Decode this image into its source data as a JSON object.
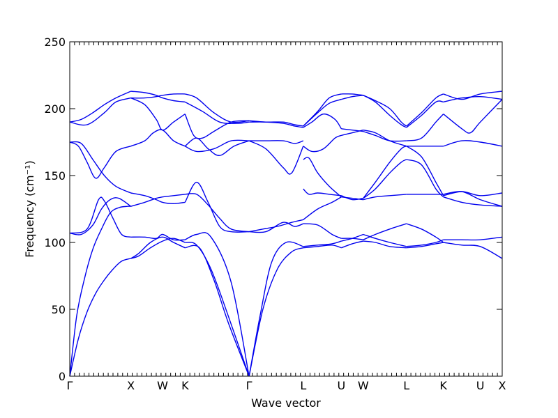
{
  "chart_data": {
    "type": "line",
    "title": "",
    "xlabel": "Wave vector",
    "ylabel": "Frequency (cm⁻¹)",
    "ylim": [
      0,
      250
    ],
    "yticks": [
      0,
      50,
      100,
      150,
      200,
      250
    ],
    "xlim": [
      0,
      7.5
    ],
    "grid": false,
    "line_color": "#0000ee",
    "high_symmetry_points": [
      {
        "label": "Γ",
        "x": 0.0
      },
      {
        "label": "X",
        "x": 1.06
      },
      {
        "label": "W",
        "x": 1.61
      },
      {
        "label": "K",
        "x": 2.0
      },
      {
        "label": "Γ",
        "x": 3.11
      },
      {
        "label": "L",
        "x": 4.05
      },
      {
        "label": "U",
        "x": 4.71
      },
      {
        "label": "W",
        "x": 5.09
      },
      {
        "label": "L",
        "x": 5.84
      },
      {
        "label": "K",
        "x": 6.48
      },
      {
        "label": "U",
        "x": 7.12
      },
      {
        "label": "X",
        "x": 7.5
      }
    ],
    "series": [
      {
        "x": [
          0,
          0.15,
          0.3,
          0.45,
          0.6,
          0.75,
          0.9,
          1.06
        ],
        "values": [
          0,
          28,
          48,
          62,
          72,
          80,
          86,
          88
        ]
      },
      {
        "x": [
          0,
          0.12,
          0.25,
          0.4,
          0.55,
          0.7,
          0.85,
          1.0,
          1.06
        ],
        "values": [
          0,
          45,
          72,
          95,
          110,
          122,
          126,
          127,
          127
        ]
      },
      {
        "x": [
          0,
          0.2,
          0.4,
          0.55,
          0.7,
          0.85,
          1.06
        ],
        "values": [
          107,
          106,
          113,
          125,
          132,
          133,
          127
        ]
      },
      {
        "x": [
          0,
          0.3,
          0.5,
          0.6,
          0.75,
          0.9,
          1.06
        ],
        "values": [
          107,
          110,
          132,
          131,
          118,
          106,
          104
        ]
      },
      {
        "x": [
          1.06,
          1.2,
          1.4,
          1.61,
          1.8,
          2.0
        ],
        "values": [
          88,
          90,
          96,
          101,
          103,
          100
        ]
      },
      {
        "x": [
          1.06,
          1.2,
          1.4,
          1.61,
          1.8,
          2.0
        ],
        "values": [
          88,
          92,
          100,
          104,
          100,
          96
        ]
      },
      {
        "x": [
          1.06,
          1.3,
          1.5,
          1.61,
          1.8,
          2.0
        ],
        "values": [
          104,
          104,
          103,
          106,
          102,
          102
        ]
      },
      {
        "x": [
          1.06,
          1.3,
          1.5,
          1.61,
          1.8,
          2.0
        ],
        "values": [
          127,
          130,
          133,
          134,
          135,
          136
        ]
      },
      {
        "x": [
          1.06,
          1.3,
          1.5,
          1.61,
          1.8,
          2.0
        ],
        "values": [
          137,
          135,
          132,
          130,
          129,
          130
        ]
      },
      {
        "x": [
          0,
          0.2,
          0.4,
          0.6,
          0.8,
          1.06
        ],
        "values": [
          175,
          174,
          162,
          150,
          142,
          137
        ]
      },
      {
        "x": [
          0,
          0.15,
          0.3,
          0.45,
          0.6,
          0.8,
          1.06
        ],
        "values": [
          175,
          172,
          160,
          148,
          156,
          168,
          172
        ]
      },
      {
        "x": [
          0,
          0.3,
          0.6,
          0.8,
          1.06
        ],
        "values": [
          190,
          188,
          197,
          205,
          208
        ]
      },
      {
        "x": [
          0,
          0.2,
          0.4,
          0.6,
          0.8,
          1.06
        ],
        "values": [
          190,
          192,
          197,
          203,
          208,
          213
        ]
      },
      {
        "x": [
          1.06,
          1.3,
          1.45,
          1.61,
          1.8,
          2.0
        ],
        "values": [
          172,
          176,
          182,
          184,
          176,
          172
        ]
      },
      {
        "x": [
          1.06,
          1.3,
          1.5,
          1.61,
          1.8,
          2.0
        ],
        "values": [
          208,
          203,
          192,
          184,
          190,
          196
        ]
      },
      {
        "x": [
          1.06,
          1.3,
          1.5,
          1.61,
          1.8,
          2.0
        ],
        "values": [
          213,
          212,
          210,
          208,
          206,
          205
        ]
      },
      {
        "x": [
          1.06,
          1.3,
          1.5,
          1.61,
          1.8,
          2.0
        ],
        "values": [
          208,
          208,
          209,
          210,
          211,
          211
        ]
      },
      {
        "x": [
          2.0,
          2.25,
          2.5,
          2.75,
          3.11
        ],
        "values": [
          96,
          96,
          72,
          40,
          0
        ]
      },
      {
        "x": [
          2.0,
          2.2,
          2.45,
          2.75,
          3.11
        ],
        "values": [
          100,
          98,
          80,
          45,
          0
        ]
      },
      {
        "x": [
          2.0,
          2.2,
          2.45,
          2.8,
          3.11
        ],
        "values": [
          102,
          106,
          104,
          70,
          0
        ]
      },
      {
        "x": [
          2.0,
          2.2,
          2.4,
          2.6,
          2.8,
          3.11
        ],
        "values": [
          130,
          145,
          130,
          112,
          108,
          108
        ]
      },
      {
        "x": [
          2.0,
          2.2,
          2.4,
          2.6,
          2.8,
          3.11
        ],
        "values": [
          136,
          136,
          128,
          118,
          110,
          108
        ]
      },
      {
        "x": [
          2.0,
          2.2,
          2.4,
          2.6,
          2.85,
          3.11
        ],
        "values": [
          172,
          178,
          170,
          165,
          172,
          176
        ]
      },
      {
        "x": [
          2.0,
          2.15,
          2.3,
          2.5,
          2.8,
          3.11
        ],
        "values": [
          196,
          180,
          178,
          183,
          190,
          191
        ]
      },
      {
        "x": [
          2.0,
          2.3,
          2.6,
          2.9,
          3.11
        ],
        "values": [
          205,
          198,
          190,
          189,
          190
        ]
      },
      {
        "x": [
          2.0,
          2.2,
          2.5,
          2.8,
          3.11
        ],
        "values": [
          211,
          208,
          197,
          190,
          191
        ]
      },
      {
        "x": [
          2.0,
          2.2,
          2.5,
          2.8,
          3.11
        ],
        "values": [
          172,
          168,
          170,
          176,
          176
        ]
      },
      {
        "x": [
          3.11,
          3.35,
          3.6,
          3.85,
          4.05
        ],
        "values": [
          0,
          50,
          80,
          93,
          96
        ]
      },
      {
        "x": [
          3.11,
          3.3,
          3.5,
          3.75,
          4.05
        ],
        "values": [
          0,
          45,
          85,
          100,
          97
        ]
      },
      {
        "x": [
          3.11,
          3.35,
          3.6,
          3.85,
          4.05
        ],
        "values": [
          108,
          110,
          112,
          115,
          117
        ]
      },
      {
        "x": [
          3.11,
          3.4,
          3.7,
          3.9,
          4.05
        ],
        "values": [
          108,
          108,
          115,
          112,
          114
        ]
      },
      {
        "x": [
          3.11,
          3.4,
          3.7,
          3.85,
          4.05
        ],
        "values": [
          176,
          170,
          156,
          152,
          172
        ]
      },
      {
        "x": [
          3.11,
          3.4,
          3.7,
          3.9,
          4.05
        ],
        "values": [
          176,
          176,
          176,
          174,
          176
        ]
      },
      {
        "x": [
          3.11,
          3.4,
          3.7,
          3.9,
          4.05
        ],
        "values": [
          190,
          190,
          189,
          187,
          186
        ]
      },
      {
        "x": [
          3.11,
          3.4,
          3.7,
          3.9,
          4.05
        ],
        "values": [
          191,
          190,
          190,
          188,
          187
        ]
      },
      {
        "x": [
          4.05,
          4.3,
          4.55,
          4.71
        ],
        "values": [
          96,
          97,
          98,
          96
        ]
      },
      {
        "x": [
          4.05,
          4.3,
          4.55,
          4.71
        ],
        "values": [
          97,
          98,
          99,
          101
        ]
      },
      {
        "x": [
          4.05,
          4.3,
          4.55,
          4.71
        ],
        "values": [
          114,
          113,
          106,
          103
        ]
      },
      {
        "x": [
          4.05,
          4.3,
          4.55,
          4.71
        ],
        "values": [
          117,
          125,
          130,
          134
        ]
      },
      {
        "x": [
          4.05,
          4.15,
          4.3,
          4.5,
          4.71
        ],
        "values": [
          140,
          136,
          137,
          136,
          135
        ]
      },
      {
        "x": [
          4.05,
          4.15,
          4.3,
          4.5,
          4.71
        ],
        "values": [
          162,
          163,
          152,
          142,
          134
        ]
      },
      {
        "x": [
          4.05,
          4.2,
          4.4,
          4.6,
          4.71
        ],
        "values": [
          172,
          168,
          170,
          178,
          180
        ]
      },
      {
        "x": [
          4.05,
          4.2,
          4.4,
          4.6,
          4.71
        ],
        "values": [
          186,
          190,
          196,
          192,
          185
        ]
      },
      {
        "x": [
          4.05,
          4.3,
          4.5,
          4.71
        ],
        "values": [
          187,
          198,
          208,
          211
        ]
      },
      {
        "x": [
          4.05,
          4.3,
          4.5,
          4.71
        ],
        "values": [
          187,
          197,
          204,
          207
        ]
      },
      {
        "x": [
          4.71,
          4.9,
          5.09
        ],
        "values": [
          96,
          99,
          101
        ]
      },
      {
        "x": [
          4.71,
          4.9,
          5.09
        ],
        "values": [
          101,
          103,
          106
        ]
      },
      {
        "x": [
          4.71,
          4.9,
          5.09
        ],
        "values": [
          103,
          103,
          102
        ]
      },
      {
        "x": [
          4.71,
          4.9,
          5.09
        ],
        "values": [
          134,
          133,
          132
        ]
      },
      {
        "x": [
          4.71,
          4.9,
          5.09
        ],
        "values": [
          135,
          132,
          133
        ]
      },
      {
        "x": [
          4.71,
          4.9,
          5.09
        ],
        "values": [
          180,
          182,
          184
        ]
      },
      {
        "x": [
          4.71,
          4.9,
          5.09
        ],
        "values": [
          185,
          184,
          183
        ]
      },
      {
        "x": [
          4.71,
          4.9,
          5.09
        ],
        "values": [
          211,
          211,
          210
        ]
      },
      {
        "x": [
          4.71,
          4.9,
          5.09
        ],
        "values": [
          207,
          209,
          210
        ]
      },
      {
        "x": [
          5.09,
          5.3,
          5.55,
          5.84
        ],
        "values": [
          101,
          100,
          97,
          96
        ]
      },
      {
        "x": [
          5.09,
          5.3,
          5.55,
          5.84
        ],
        "values": [
          106,
          103,
          100,
          97
        ]
      },
      {
        "x": [
          5.09,
          5.3,
          5.55,
          5.84
        ],
        "values": [
          102,
          106,
          110,
          114
        ]
      },
      {
        "x": [
          5.09,
          5.3,
          5.55,
          5.84
        ],
        "values": [
          132,
          134,
          135,
          136
        ]
      },
      {
        "x": [
          5.09,
          5.3,
          5.55,
          5.75,
          5.84
        ],
        "values": [
          133,
          140,
          152,
          160,
          162
        ]
      },
      {
        "x": [
          5.09,
          5.3,
          5.55,
          5.75,
          5.84
        ],
        "values": [
          133,
          145,
          160,
          170,
          172
        ]
      },
      {
        "x": [
          5.09,
          5.3,
          5.55,
          5.84
        ],
        "values": [
          184,
          182,
          176,
          172
        ]
      },
      {
        "x": [
          5.09,
          5.3,
          5.55,
          5.84
        ],
        "values": [
          183,
          180,
          176,
          176
        ]
      },
      {
        "x": [
          5.09,
          5.3,
          5.55,
          5.75,
          5.84
        ],
        "values": [
          210,
          205,
          195,
          188,
          186
        ]
      },
      {
        "x": [
          5.09,
          5.3,
          5.55,
          5.75,
          5.84
        ],
        "values": [
          210,
          206,
          200,
          190,
          187
        ]
      },
      {
        "x": [
          5.84,
          6.1,
          6.35,
          6.48
        ],
        "values": [
          96,
          97,
          99,
          100
        ]
      },
      {
        "x": [
          5.84,
          6.1,
          6.35,
          6.48
        ],
        "values": [
          97,
          98,
          100,
          102
        ]
      },
      {
        "x": [
          5.84,
          6.1,
          6.35,
          6.48
        ],
        "values": [
          114,
          110,
          104,
          100
        ]
      },
      {
        "x": [
          5.84,
          6.1,
          6.35,
          6.48
        ],
        "values": [
          136,
          136,
          136,
          136
        ]
      },
      {
        "x": [
          5.84,
          6.1,
          6.35,
          6.48
        ],
        "values": [
          162,
          158,
          140,
          134
        ]
      },
      {
        "x": [
          5.84,
          6.1,
          6.35,
          6.48
        ],
        "values": [
          172,
          164,
          145,
          135
        ]
      },
      {
        "x": [
          5.84,
          6.1,
          6.35,
          6.48
        ],
        "values": [
          172,
          172,
          172,
          172
        ]
      },
      {
        "x": [
          5.84,
          6.1,
          6.35,
          6.48
        ],
        "values": [
          176,
          178,
          190,
          196
        ]
      },
      {
        "x": [
          5.84,
          6.1,
          6.35,
          6.48
        ],
        "values": [
          186,
          195,
          205,
          205
        ]
      },
      {
        "x": [
          5.84,
          6.1,
          6.35,
          6.48
        ],
        "values": [
          187,
          197,
          208,
          211
        ]
      },
      {
        "x": [
          6.48,
          6.8,
          7.12,
          7.5
        ],
        "values": [
          100,
          98,
          97,
          88
        ]
      },
      {
        "x": [
          6.48,
          6.8,
          7.12,
          7.5
        ],
        "values": [
          102,
          102,
          102,
          104
        ]
      },
      {
        "x": [
          6.48,
          6.8,
          7.12,
          7.5
        ],
        "values": [
          134,
          130,
          128,
          127
        ]
      },
      {
        "x": [
          6.48,
          6.8,
          7.12,
          7.5
        ],
        "values": [
          135,
          138,
          135,
          137
        ]
      },
      {
        "x": [
          6.48,
          6.8,
          7.12,
          7.5
        ],
        "values": [
          136,
          138,
          132,
          127
        ]
      },
      {
        "x": [
          6.48,
          6.8,
          7.12,
          7.5
        ],
        "values": [
          172,
          176,
          175,
          172
        ]
      },
      {
        "x": [
          6.48,
          6.8,
          6.95,
          7.12,
          7.5
        ],
        "values": [
          196,
          185,
          182,
          190,
          207
        ]
      },
      {
        "x": [
          6.48,
          6.8,
          7.12,
          7.5
        ],
        "values": [
          205,
          208,
          209,
          207
        ]
      },
      {
        "x": [
          6.48,
          6.8,
          7.12,
          7.5
        ],
        "values": [
          211,
          207,
          211,
          213
        ]
      }
    ]
  }
}
